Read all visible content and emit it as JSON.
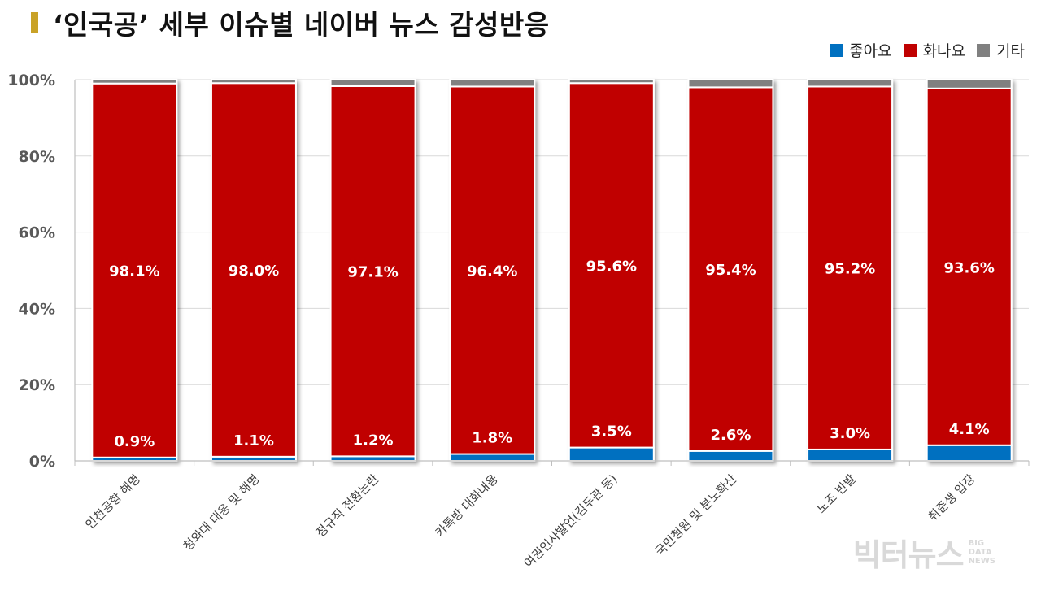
{
  "title": "‘인국공’ 세부 이슈별 네이버 뉴스 감성반응",
  "watermark": {
    "main": "빅터뉴스",
    "sub": [
      "BIG",
      "DATA",
      "NEWS"
    ]
  },
  "colors": {
    "title_bar": "#c9a227",
    "good": "#0070c0",
    "angry": "#c00000",
    "other": "#808080"
  },
  "chart_data": {
    "type": "bar",
    "stacked": true,
    "categories": [
      "인천공항 해명",
      "청와대 대응 및 해명",
      "정규직 전환논란",
      "카톡방 대화내용",
      "여권인사발언(김두관 등)",
      "국민청원 및 분노확산",
      "노조 반발",
      "취준생 입장"
    ],
    "series": [
      {
        "name": "좋아요",
        "color": "#0070c0",
        "values": [
          0.9,
          1.1,
          1.2,
          1.8,
          3.5,
          2.6,
          3.0,
          4.1
        ],
        "labels": [
          "0.9%",
          "1.1%",
          "1.2%",
          "1.8%",
          "3.5%",
          "2.6%",
          "3.0%",
          "4.1%"
        ]
      },
      {
        "name": "화나요",
        "color": "#c00000",
        "values": [
          98.1,
          98.0,
          97.1,
          96.4,
          95.6,
          95.4,
          95.2,
          93.6
        ],
        "labels": [
          "98.1%",
          "98.0%",
          "97.1%",
          "96.4%",
          "95.6%",
          "95.4%",
          "95.2%",
          "93.6%"
        ]
      },
      {
        "name": "기타",
        "color": "#808080",
        "values": [
          1.0,
          0.9,
          1.7,
          1.8,
          0.9,
          2.0,
          1.8,
          2.3
        ]
      }
    ],
    "yticks": [
      "0%",
      "20%",
      "40%",
      "60%",
      "80%",
      "100%"
    ],
    "ylim": [
      0,
      100
    ],
    "legend_position": "top-right",
    "grid": true
  }
}
